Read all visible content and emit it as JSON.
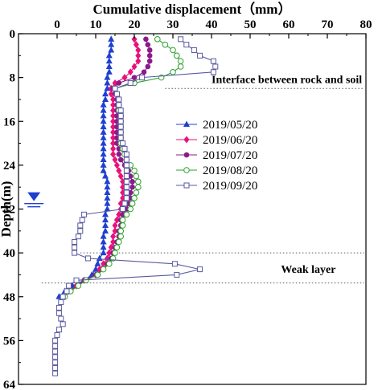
{
  "chart_data": {
    "type": "line",
    "xlabel": "Cumulative displacement（mm）",
    "ylabel": "Depth(m)",
    "xlim": [
      -10,
      80
    ],
    "ylim": [
      0,
      64
    ],
    "x_ticks": [
      0,
      10,
      20,
      30,
      40,
      50,
      60,
      70,
      80
    ],
    "y_ticks": [
      0,
      8,
      16,
      24,
      32,
      40,
      48,
      56,
      64
    ],
    "x_axis_position": "top",
    "y_inverted": true,
    "legend_position": "center-right",
    "depth": [
      1,
      2,
      3,
      4,
      5,
      6,
      7,
      8,
      9,
      10,
      11,
      12,
      13,
      14,
      15,
      16,
      17,
      18,
      19,
      20,
      21,
      22,
      23,
      24,
      25,
      26,
      27,
      28,
      29,
      30,
      31,
      32,
      33,
      34,
      35,
      36,
      37,
      38,
      39,
      40,
      41,
      42,
      43,
      44,
      45,
      46,
      47,
      48,
      49,
      50,
      51,
      52,
      53,
      54,
      55,
      56,
      57,
      58,
      59,
      60,
      61,
      62
    ],
    "series": [
      {
        "name": "2019/05/20",
        "marker": "filled-triangle",
        "color": "#1f3fd1",
        "values": [
          14,
          14,
          14,
          13.5,
          13.5,
          13.5,
          13.5,
          13,
          13,
          13,
          12.5,
          12.5,
          12,
          12,
          12,
          12,
          12,
          12,
          12,
          12,
          12,
          12,
          12,
          12,
          12,
          12.5,
          13,
          13,
          13,
          13,
          13,
          13,
          12.5,
          12.5,
          12.5,
          12.5,
          12,
          12,
          12,
          12,
          11,
          10.5,
          10,
          9,
          7,
          4,
          2,
          0.5
        ]
      },
      {
        "name": "2019/06/20",
        "marker": "filled-diamond",
        "color": "#e8127a",
        "values": [
          20,
          20.5,
          21,
          21,
          21,
          20,
          19,
          17.5,
          15,
          14,
          14,
          14.5,
          14.5,
          14.5,
          14.5,
          14.5,
          14.5,
          14.5,
          14.5,
          14.5,
          14.5,
          14.5,
          15,
          15.5,
          16,
          16.5,
          17,
          17,
          17,
          17,
          16.5,
          16.5,
          16,
          15.5,
          15,
          15,
          14.5,
          14.5,
          14,
          13.5,
          13,
          12,
          11,
          10,
          7,
          5,
          3,
          2
        ]
      },
      {
        "name": "2019/07/20",
        "marker": "filled-circle",
        "color": "#8b1a8b",
        "values": [
          23,
          23.5,
          24,
          24,
          24,
          23.5,
          22.5,
          20,
          16,
          14.5,
          15,
          15.5,
          15.5,
          15.5,
          15.5,
          15.5,
          15.5,
          15.5,
          15.5,
          15.5,
          16,
          16,
          16.5,
          17.5,
          18.5,
          19,
          19.5,
          19.5,
          19,
          19,
          18.5,
          18,
          17,
          16.5,
          16.5,
          16,
          16,
          15.5,
          15,
          14.5,
          14,
          13,
          12,
          10,
          7,
          5.5,
          3,
          2
        ]
      },
      {
        "name": "2019/08/20",
        "marker": "open-circle",
        "color": "#2ca02c",
        "values": [
          26,
          28,
          30,
          31,
          32,
          32,
          30,
          27,
          20,
          15,
          15.5,
          16,
          16,
          16,
          16.5,
          16.5,
          16.5,
          16.5,
          16.5,
          16.5,
          17,
          17.5,
          18,
          19,
          20,
          20.5,
          21,
          21,
          20.5,
          20,
          19.5,
          19,
          18,
          17,
          17,
          16.5,
          16.5,
          16,
          15.5,
          15,
          14.5,
          13.5,
          12,
          10.5,
          7.5,
          5.5,
          3.5,
          2
        ]
      },
      {
        "name": "2019/09/20",
        "marker": "open-square",
        "color": "#5a5aa0",
        "values": [
          32,
          33.5,
          35.5,
          37,
          40.5,
          41,
          40.5,
          22,
          19,
          15,
          15.5,
          16,
          16,
          16.5,
          16.5,
          16.5,
          16.5,
          16.5,
          16.5,
          17,
          17.5,
          18,
          18,
          18,
          18,
          18,
          18,
          18,
          18,
          18,
          17.5,
          17,
          7,
          6.5,
          6,
          6,
          5.5,
          4.5,
          4.5,
          4.5,
          8,
          30.5,
          37,
          31,
          5,
          3,
          2.5,
          1.5,
          1,
          0.5,
          0.5,
          1,
          1.5,
          0.5,
          0,
          -0.5,
          -0.5,
          -0.5,
          -0.5,
          -0.5,
          -0.5,
          -0.5
        ]
      }
    ],
    "annotations": {
      "interface_label": "Interface between rock and soil",
      "interface_depth": 10,
      "weak_layer_label": "Weak layer",
      "weak_layer_top": 40,
      "weak_layer_bottom": 45.5,
      "water_table_depth": 31
    }
  }
}
